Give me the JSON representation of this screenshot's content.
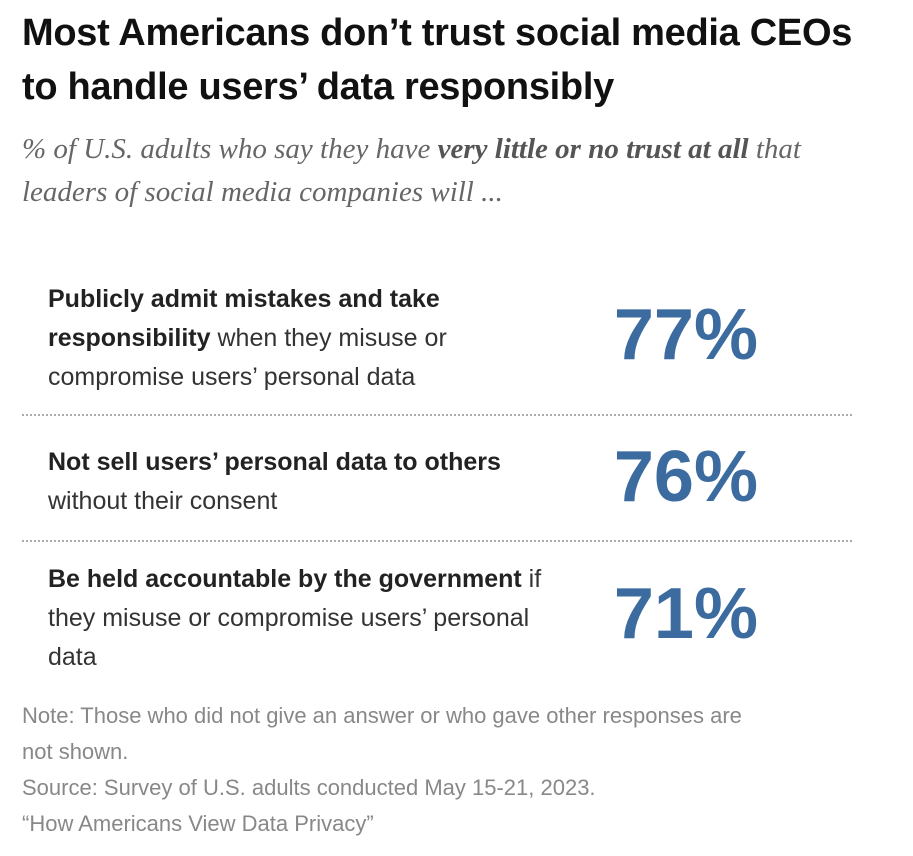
{
  "header": {
    "title": "Most Americans don’t trust social media CEOs to handle users’ data responsibly",
    "subtitle": {
      "before": "% of U.S. adults who say they have ",
      "emphasis": "very little or no trust at all",
      "after": " that leaders of social media companies will ..."
    }
  },
  "items": [
    {
      "bold": "Publicly admit mistakes and take responsibility",
      "rest": " when they misuse or compromise users’ personal data",
      "value": "77%"
    },
    {
      "bold": "Not sell users’ personal data to others",
      "rest": " without their consent",
      "value": "76%"
    },
    {
      "bold": "Be held accountable by the government",
      "rest": " if they misuse or compromise users’ personal data",
      "value": "71%"
    }
  ],
  "footer": {
    "note": "Note: Those who did not give an answer or who gave other responses are not shown.",
    "source": "Source: Survey of U.S. adults conducted May 15-21, 2023.",
    "report": "“How Americans View Data Privacy”"
  }
}
